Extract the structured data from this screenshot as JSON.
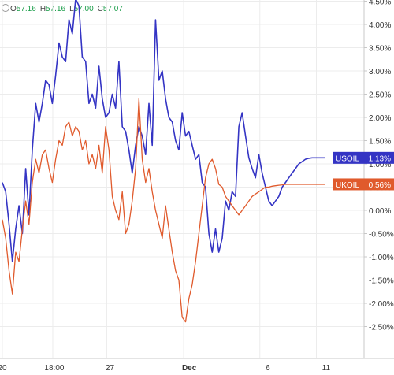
{
  "ohlc": {
    "open_label": "O",
    "open": "57.16",
    "high_label": "H",
    "high": "57.16",
    "low_label": "L",
    "low": "57.00",
    "close_label": "C",
    "close": "57.07"
  },
  "chart_data": {
    "type": "line",
    "x_labels": [
      "20",
      "18:00",
      "27",
      "Dec",
      "6",
      "11"
    ],
    "y_ticks": [
      "4.50%",
      "4.00%",
      "3.50%",
      "3.00%",
      "2.50%",
      "2.00%",
      "1.50%",
      "1.00%",
      "0.50%",
      "0.00%",
      "-0.50%",
      "-1.00%",
      "-1.50%",
      "-2.00%",
      "-2.50%"
    ],
    "ylim": [
      -2.6,
      4.75
    ],
    "x_range": [
      0,
      100
    ],
    "x_tick_positions": [
      0,
      15.6,
      32.3,
      56.1,
      79.7,
      97.2
    ],
    "grid": true,
    "legend": "right",
    "series": [
      {
        "name": "USOIL",
        "color": "#3434c4",
        "last_value": "1.13%",
        "x": [
          0,
          1,
          2,
          3,
          4,
          5,
          6,
          7,
          8,
          9,
          10,
          11,
          12,
          13,
          14,
          15,
          16,
          17,
          18,
          19,
          20,
          21,
          22,
          23,
          24,
          25,
          26,
          27,
          28,
          29,
          30,
          31,
          32,
          33,
          34,
          35,
          36,
          37,
          38,
          39,
          40,
          41,
          42,
          43,
          44,
          45,
          46,
          47,
          48,
          49,
          50,
          51,
          52,
          53,
          54,
          55,
          56,
          57,
          58,
          59,
          60,
          61,
          62,
          63,
          64,
          65,
          66,
          67,
          68,
          69,
          70,
          71,
          72,
          73,
          74,
          75,
          76,
          77,
          78,
          79,
          80,
          81,
          82,
          83,
          84,
          85,
          86,
          87,
          88,
          89,
          90,
          91,
          92,
          93,
          94,
          95,
          96,
          97
        ],
        "values": [
          0.6,
          0.4,
          -0.3,
          -1.1,
          -0.4,
          0.1,
          -0.5,
          0.9,
          -0.1,
          1.3,
          2.3,
          1.9,
          2.3,
          2.8,
          2.7,
          2.3,
          2.9,
          3.6,
          3.3,
          3.2,
          4.1,
          3.8,
          4.55,
          4.4,
          3.3,
          3.2,
          2.3,
          2.5,
          2.2,
          3.1,
          2.4,
          2.0,
          2.1,
          2.5,
          2.2,
          3.2,
          1.8,
          1.7,
          1.3,
          0.8,
          1.4,
          1.8,
          1.6,
          1.2,
          2.3,
          1.4,
          4.1,
          2.8,
          3.0,
          2.4,
          2.0,
          1.9,
          1.5,
          1.3,
          2.1,
          1.6,
          1.7,
          1.4,
          1.1,
          1.2,
          0.6,
          0.5,
          -0.5,
          -0.9,
          -0.4,
          -0.9,
          -0.6,
          0.2,
          0.0,
          0.4,
          0.3,
          1.8,
          2.1,
          1.6,
          1.13,
          0.9,
          0.7,
          1.2,
          0.8,
          0.5,
          0.2,
          0.1,
          0.2,
          0.3,
          0.5,
          0.6,
          0.7,
          0.8,
          0.9,
          1.0,
          1.05,
          1.1,
          1.12,
          1.13,
          1.13,
          1.13,
          1.13,
          1.13
        ]
      },
      {
        "name": "UKOIL",
        "color": "#e05a2c",
        "last_value": "0.56%",
        "x": [
          0,
          1,
          2,
          3,
          4,
          5,
          6,
          7,
          8,
          9,
          10,
          11,
          12,
          13,
          14,
          15,
          16,
          17,
          18,
          19,
          20,
          21,
          22,
          23,
          24,
          25,
          26,
          27,
          28,
          29,
          30,
          31,
          32,
          33,
          34,
          35,
          36,
          37,
          38,
          39,
          40,
          41,
          42,
          43,
          44,
          45,
          46,
          47,
          48,
          49,
          50,
          51,
          52,
          53,
          54,
          55,
          56,
          57,
          58,
          59,
          60,
          61,
          62,
          63,
          64,
          65,
          66,
          67,
          68,
          69,
          70,
          71,
          72,
          73,
          74,
          75,
          76,
          77,
          78,
          79,
          80,
          81,
          82,
          83,
          84,
          85,
          86,
          87,
          88,
          89,
          90,
          91,
          92,
          93,
          94,
          95,
          96,
          97
        ],
        "values": [
          -0.2,
          -0.6,
          -1.3,
          -1.8,
          -0.9,
          -1.1,
          -0.4,
          0.2,
          -0.3,
          0.6,
          1.1,
          0.8,
          1.2,
          1.3,
          0.9,
          0.6,
          1.1,
          1.5,
          1.4,
          1.8,
          1.9,
          1.6,
          1.8,
          1.7,
          1.3,
          1.5,
          1.0,
          1.2,
          0.9,
          1.4,
          0.8,
          1.8,
          1.3,
          0.3,
          0.0,
          -0.2,
          0.4,
          -0.5,
          -0.3,
          0.2,
          0.9,
          2.4,
          1.1,
          0.6,
          0.9,
          0.4,
          0.0,
          -0.3,
          -0.6,
          0.1,
          -0.4,
          -0.9,
          -1.3,
          -1.5,
          -2.3,
          -2.4,
          -1.9,
          -1.6,
          -1.1,
          -0.5,
          0.1,
          0.7,
          1.0,
          1.1,
          0.9,
          0.56,
          0.5,
          0.3,
          0.2,
          0.1,
          0.0,
          -0.1,
          0.0,
          0.1,
          0.2,
          0.3,
          0.35,
          0.4,
          0.45,
          0.5,
          0.5,
          0.52,
          0.53,
          0.54,
          0.55,
          0.56,
          0.56,
          0.56,
          0.56,
          0.56,
          0.56,
          0.56,
          0.56,
          0.56,
          0.56,
          0.56,
          0.56,
          0.56
        ]
      }
    ]
  }
}
